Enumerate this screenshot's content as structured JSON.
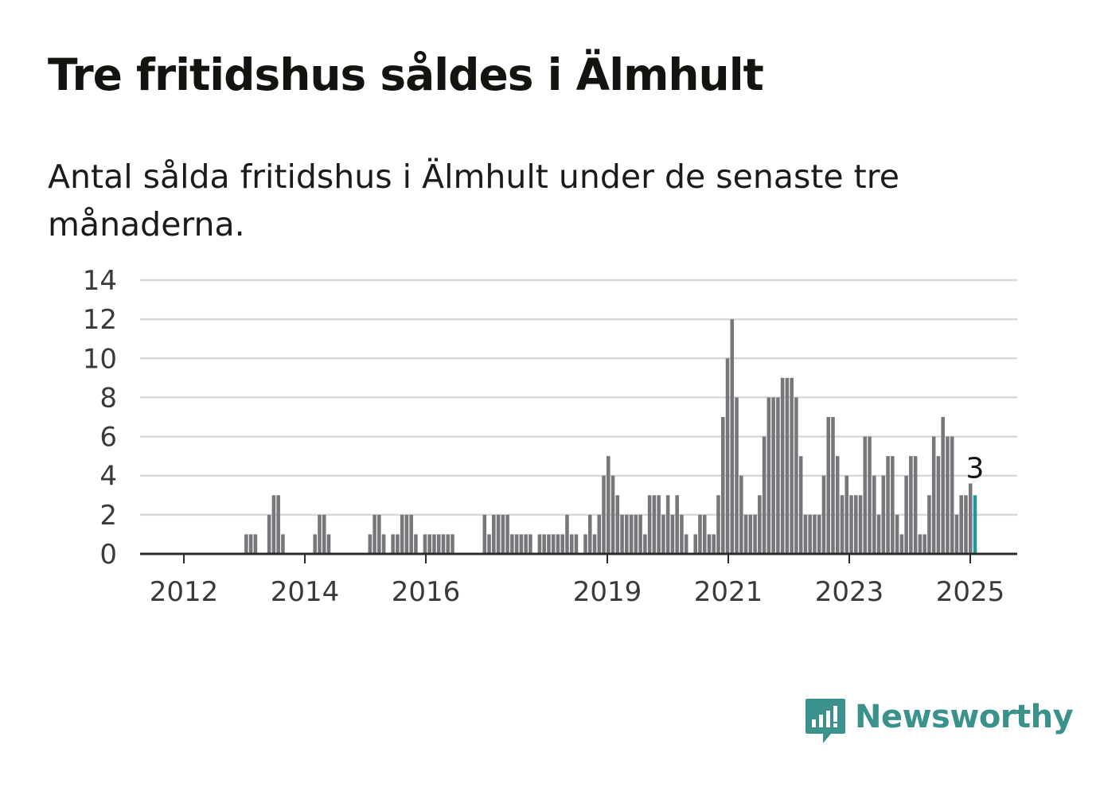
{
  "title": "Tre fritidshus såldes i Älmhult",
  "subtitle": "Antal sålda fritidshus i Älmhult under de senaste tre månaderna.",
  "brand": {
    "name": "Newsworthy",
    "icon": "newsworthy-logo-icon",
    "color": "#3b918c"
  },
  "colors": {
    "bar": "#77777b",
    "highlight": "#1f9a96",
    "grid": "#d9d9d9",
    "axis": "#2b2b2b"
  },
  "chart_data": {
    "type": "bar",
    "ylim": [
      0,
      14
    ],
    "yticks": [
      "0",
      "2",
      "4",
      "6",
      "8",
      "10",
      "12",
      "14"
    ],
    "xticks": [
      "2012",
      "2014",
      "2016",
      "2019",
      "2021",
      "2023",
      "2025"
    ],
    "grid": true,
    "annotation": "3",
    "values": [
      0,
      0,
      0,
      0,
      0,
      0,
      0,
      0,
      0,
      0,
      0,
      1,
      1,
      1,
      0,
      0,
      2,
      3,
      3,
      1,
      0,
      0,
      0,
      0,
      0,
      0,
      1,
      2,
      2,
      1,
      0,
      0,
      0,
      0,
      0,
      0,
      0,
      0,
      1,
      2,
      2,
      1,
      0,
      1,
      1,
      2,
      2,
      2,
      1,
      0,
      1,
      1,
      1,
      1,
      1,
      1,
      1,
      0,
      0,
      0,
      0,
      0,
      0,
      2,
      1,
      2,
      2,
      2,
      2,
      1,
      1,
      1,
      1,
      1,
      0,
      1,
      1,
      1,
      1,
      1,
      1,
      2,
      1,
      1,
      0,
      1,
      2,
      1,
      2,
      4,
      5,
      4,
      3,
      2,
      2,
      2,
      2,
      2,
      1,
      3,
      3,
      3,
      2,
      3,
      2,
      3,
      2,
      1,
      0,
      1,
      2,
      2,
      1,
      1,
      3,
      7,
      10,
      12,
      8,
      4,
      2,
      2,
      2,
      3,
      6,
      8,
      8,
      8,
      9,
      9,
      9,
      8,
      5,
      2,
      2,
      2,
      2,
      4,
      7,
      7,
      5,
      3,
      4,
      3,
      3,
      3,
      6,
      6,
      4,
      2,
      4,
      5,
      5,
      2,
      1,
      4,
      5,
      5,
      1,
      1,
      3,
      6,
      5,
      7,
      6,
      6,
      2,
      3,
      3,
      3.6,
      3
    ]
  }
}
